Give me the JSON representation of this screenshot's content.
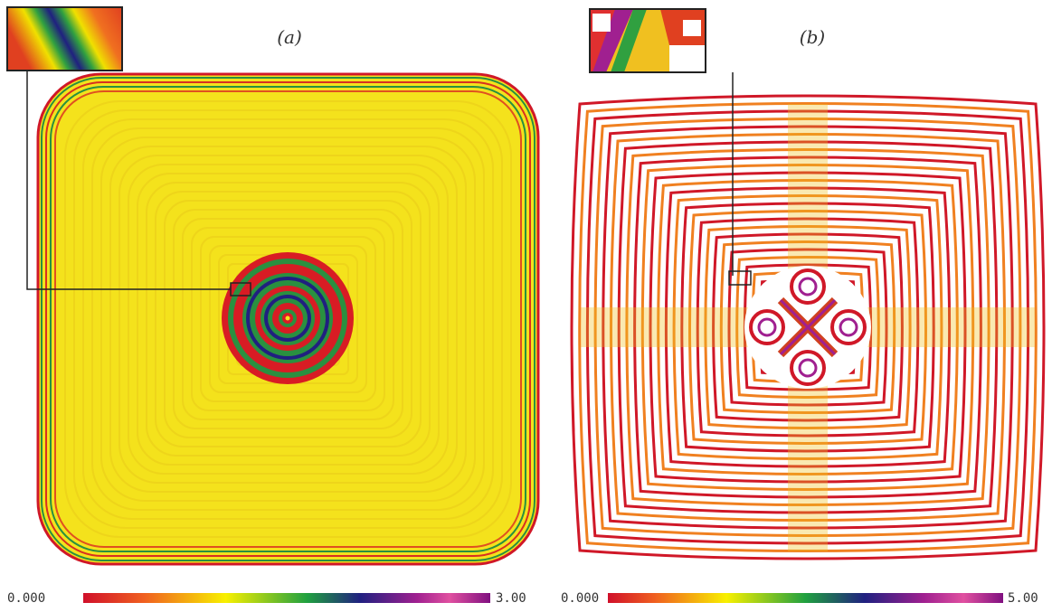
{
  "panels": [
    {
      "label": "(a)",
      "colorbar": {
        "min_label": "0.000",
        "max_label": "3.00"
      }
    },
    {
      "label": "(b)",
      "colorbar": {
        "min_label": "0.000",
        "max_label": "5.00"
      }
    }
  ]
}
